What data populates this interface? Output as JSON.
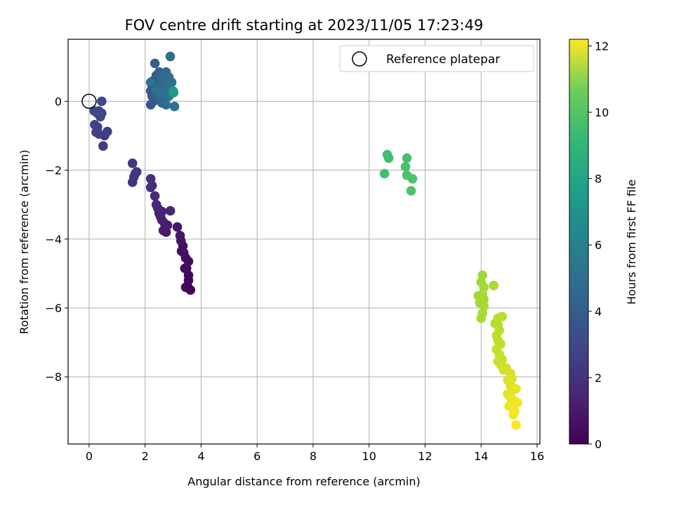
{
  "chart_data": {
    "type": "scatter",
    "title": "FOV centre drift starting at 2023/11/05 17:23:49",
    "xlabel": "Angular distance from reference (arcmin)",
    "ylabel": "Rotation from reference (arcmin)",
    "xlim": [
      -0.75,
      16.1
    ],
    "ylim": [
      -9.95,
      1.8
    ],
    "xticks": [
      0,
      2,
      4,
      6,
      8,
      10,
      12,
      14,
      16
    ],
    "yticks": [
      0,
      -2,
      -4,
      -6,
      -8
    ],
    "grid": true,
    "legend": {
      "position": "top-right",
      "entries": [
        "Reference platepar"
      ]
    },
    "reference_point": {
      "x": 0,
      "y": 0
    },
    "colorbar": {
      "label": "Hours from first FF file",
      "colormap": "viridis",
      "range": [
        0,
        12.2
      ],
      "ticks": [
        0,
        2,
        4,
        6,
        8,
        10,
        12
      ]
    },
    "points": [
      {
        "x": 3.62,
        "y": -5.48,
        "h": 0.05
      },
      {
        "x": 3.52,
        "y": -5.38,
        "h": 0.1
      },
      {
        "x": 3.45,
        "y": -5.4,
        "h": 0.15
      },
      {
        "x": 3.55,
        "y": -5.2,
        "h": 0.2
      },
      {
        "x": 3.55,
        "y": -5.05,
        "h": 0.25
      },
      {
        "x": 3.48,
        "y": -4.85,
        "h": 0.3
      },
      {
        "x": 3.42,
        "y": -4.85,
        "h": 0.35
      },
      {
        "x": 3.55,
        "y": -4.65,
        "h": 0.4
      },
      {
        "x": 3.45,
        "y": -4.55,
        "h": 0.45
      },
      {
        "x": 3.38,
        "y": -4.4,
        "h": 0.5
      },
      {
        "x": 3.3,
        "y": -4.35,
        "h": 0.55
      },
      {
        "x": 3.35,
        "y": -4.2,
        "h": 0.6
      },
      {
        "x": 3.28,
        "y": -4.05,
        "h": 0.65
      },
      {
        "x": 3.25,
        "y": -3.9,
        "h": 0.7
      },
      {
        "x": 3.15,
        "y": -3.65,
        "h": 0.75
      },
      {
        "x": 2.75,
        "y": -3.8,
        "h": 0.85
      },
      {
        "x": 2.65,
        "y": -3.75,
        "h": 0.9
      },
      {
        "x": 2.8,
        "y": -3.6,
        "h": 0.95
      },
      {
        "x": 2.7,
        "y": -3.55,
        "h": 1.0
      },
      {
        "x": 2.6,
        "y": -3.45,
        "h": 1.05
      },
      {
        "x": 2.55,
        "y": -3.35,
        "h": 1.1
      },
      {
        "x": 2.5,
        "y": -3.25,
        "h": 1.15
      },
      {
        "x": 2.6,
        "y": -3.2,
        "h": 1.2
      },
      {
        "x": 2.45,
        "y": -3.1,
        "h": 1.25
      },
      {
        "x": 2.9,
        "y": -3.18,
        "h": 1.3
      },
      {
        "x": 2.4,
        "y": -3.0,
        "h": 1.35
      },
      {
        "x": 2.35,
        "y": -2.75,
        "h": 1.4
      },
      {
        "x": 2.2,
        "y": -2.5,
        "h": 1.55
      },
      {
        "x": 2.25,
        "y": -2.45,
        "h": 1.6
      },
      {
        "x": 2.2,
        "y": -2.25,
        "h": 1.65
      },
      {
        "x": 1.55,
        "y": -2.35,
        "h": 1.75
      },
      {
        "x": 1.6,
        "y": -2.2,
        "h": 1.8
      },
      {
        "x": 1.65,
        "y": -2.1,
        "h": 1.85
      },
      {
        "x": 1.7,
        "y": -2.05,
        "h": 1.9
      },
      {
        "x": 1.55,
        "y": -1.8,
        "h": 1.95
      },
      {
        "x": 0.5,
        "y": -1.3,
        "h": 2.15
      },
      {
        "x": 0.55,
        "y": -1.0,
        "h": 2.2
      },
      {
        "x": 0.65,
        "y": -0.88,
        "h": 2.25
      },
      {
        "x": 0.35,
        "y": -0.95,
        "h": 2.3
      },
      {
        "x": 0.25,
        "y": -0.9,
        "h": 2.35
      },
      {
        "x": 0.3,
        "y": -0.75,
        "h": 2.4
      },
      {
        "x": 0.2,
        "y": -0.68,
        "h": 2.45
      },
      {
        "x": 0.4,
        "y": -0.45,
        "h": 2.5
      },
      {
        "x": 0.45,
        "y": -0.35,
        "h": 2.55
      },
      {
        "x": 0.3,
        "y": -0.35,
        "h": 2.6
      },
      {
        "x": 0.18,
        "y": -0.28,
        "h": 2.65
      },
      {
        "x": 0.35,
        "y": -0.28,
        "h": 2.7
      },
      {
        "x": 0.45,
        "y": 0.0,
        "h": 2.75
      },
      {
        "x": 2.2,
        "y": -0.1,
        "h": 3.3
      },
      {
        "x": 2.3,
        "y": 0.0,
        "h": 3.35
      },
      {
        "x": 2.25,
        "y": 0.15,
        "h": 3.4
      },
      {
        "x": 2.2,
        "y": 0.3,
        "h": 3.45
      },
      {
        "x": 2.25,
        "y": 0.45,
        "h": 3.5
      },
      {
        "x": 2.3,
        "y": 0.6,
        "h": 3.55
      },
      {
        "x": 2.4,
        "y": 0.75,
        "h": 3.6
      },
      {
        "x": 2.35,
        "y": 1.1,
        "h": 3.65
      },
      {
        "x": 2.5,
        "y": 0.85,
        "h": 3.7
      },
      {
        "x": 2.55,
        "y": 0.6,
        "h": 3.75
      },
      {
        "x": 2.5,
        "y": 0.4,
        "h": 3.8
      },
      {
        "x": 2.45,
        "y": 0.2,
        "h": 3.85
      },
      {
        "x": 2.55,
        "y": 0.05,
        "h": 3.9
      },
      {
        "x": 2.6,
        "y": -0.05,
        "h": 3.95
      },
      {
        "x": 2.7,
        "y": 0.1,
        "h": 4.0
      },
      {
        "x": 2.75,
        "y": 0.3,
        "h": 4.05
      },
      {
        "x": 2.65,
        "y": 0.5,
        "h": 4.1
      },
      {
        "x": 2.6,
        "y": 0.7,
        "h": 4.15
      },
      {
        "x": 2.75,
        "y": 0.85,
        "h": 4.2
      },
      {
        "x": 2.85,
        "y": 0.7,
        "h": 4.25
      },
      {
        "x": 2.8,
        "y": 0.5,
        "h": 4.3
      },
      {
        "x": 2.9,
        "y": 0.35,
        "h": 4.35
      },
      {
        "x": 2.75,
        "y": -0.1,
        "h": 4.4
      },
      {
        "x": 2.9,
        "y": 1.3,
        "h": 4.45
      },
      {
        "x": 3.05,
        "y": -0.15,
        "h": 4.5
      },
      {
        "x": 2.95,
        "y": 0.55,
        "h": 4.55
      },
      {
        "x": 2.2,
        "y": 0.55,
        "h": 4.6
      },
      {
        "x": 2.4,
        "y": 0.3,
        "h": 4.65
      },
      {
        "x": 2.6,
        "y": 0.25,
        "h": 4.7
      },
      {
        "x": 2.85,
        "y": 0.15,
        "h": 4.75
      },
      {
        "x": 3.0,
        "y": 0.3,
        "h": 6.3
      },
      {
        "x": 3.02,
        "y": 0.25,
        "h": 6.5
      },
      {
        "x": 10.65,
        "y": -1.55,
        "h": 8.4
      },
      {
        "x": 10.7,
        "y": -1.65,
        "h": 8.45
      },
      {
        "x": 10.55,
        "y": -2.1,
        "h": 8.5
      },
      {
        "x": 11.35,
        "y": -1.65,
        "h": 8.6
      },
      {
        "x": 11.3,
        "y": -1.9,
        "h": 8.65
      },
      {
        "x": 11.35,
        "y": -2.15,
        "h": 8.7
      },
      {
        "x": 11.55,
        "y": -2.25,
        "h": 8.75
      },
      {
        "x": 11.5,
        "y": -2.6,
        "h": 8.8
      },
      {
        "x": 14.05,
        "y": -5.05,
        "h": 10.4
      },
      {
        "x": 14.0,
        "y": -5.25,
        "h": 10.42
      },
      {
        "x": 14.1,
        "y": -5.4,
        "h": 10.44
      },
      {
        "x": 13.9,
        "y": -5.65,
        "h": 10.46
      },
      {
        "x": 14.05,
        "y": -5.6,
        "h": 10.48
      },
      {
        "x": 14.1,
        "y": -5.75,
        "h": 10.5
      },
      {
        "x": 13.95,
        "y": -5.85,
        "h": 10.52
      },
      {
        "x": 14.1,
        "y": -5.95,
        "h": 10.54
      },
      {
        "x": 14.05,
        "y": -6.15,
        "h": 10.56
      },
      {
        "x": 14.0,
        "y": -6.3,
        "h": 10.58
      },
      {
        "x": 14.45,
        "y": -5.35,
        "h": 10.6
      },
      {
        "x": 14.5,
        "y": -6.45,
        "h": 10.75
      },
      {
        "x": 14.6,
        "y": -6.5,
        "h": 10.8
      },
      {
        "x": 14.6,
        "y": -6.3,
        "h": 10.85
      },
      {
        "x": 14.75,
        "y": -6.25,
        "h": 10.9
      },
      {
        "x": 14.65,
        "y": -6.65,
        "h": 10.95
      },
      {
        "x": 14.55,
        "y": -6.8,
        "h": 11.0
      },
      {
        "x": 14.6,
        "y": -6.95,
        "h": 11.02
      },
      {
        "x": 14.7,
        "y": -7.05,
        "h": 11.05
      },
      {
        "x": 14.55,
        "y": -7.2,
        "h": 11.08
      },
      {
        "x": 14.65,
        "y": -7.35,
        "h": 11.1
      },
      {
        "x": 14.75,
        "y": -7.5,
        "h": 11.15
      },
      {
        "x": 14.6,
        "y": -7.55,
        "h": 11.2
      },
      {
        "x": 14.7,
        "y": -7.65,
        "h": 11.25
      },
      {
        "x": 14.8,
        "y": -7.8,
        "h": 11.3
      },
      {
        "x": 14.9,
        "y": -7.75,
        "h": 11.4
      },
      {
        "x": 15.05,
        "y": -7.9,
        "h": 11.45
      },
      {
        "x": 15.1,
        "y": -8.05,
        "h": 11.5
      },
      {
        "x": 14.95,
        "y": -8.1,
        "h": 11.55
      },
      {
        "x": 15.05,
        "y": -8.25,
        "h": 11.6
      },
      {
        "x": 15.1,
        "y": -8.4,
        "h": 11.65
      },
      {
        "x": 14.95,
        "y": -8.5,
        "h": 11.7
      },
      {
        "x": 15.05,
        "y": -8.6,
        "h": 11.75
      },
      {
        "x": 15.25,
        "y": -8.35,
        "h": 11.8
      },
      {
        "x": 15.2,
        "y": -8.7,
        "h": 11.85
      },
      {
        "x": 15.0,
        "y": -8.85,
        "h": 11.9
      },
      {
        "x": 15.15,
        "y": -8.9,
        "h": 11.95
      },
      {
        "x": 15.3,
        "y": -8.75,
        "h": 12.0
      },
      {
        "x": 15.15,
        "y": -9.1,
        "h": 12.05
      },
      {
        "x": 15.25,
        "y": -9.4,
        "h": 12.1
      },
      {
        "x": 15.2,
        "y": -9.0,
        "h": 12.12
      }
    ]
  }
}
